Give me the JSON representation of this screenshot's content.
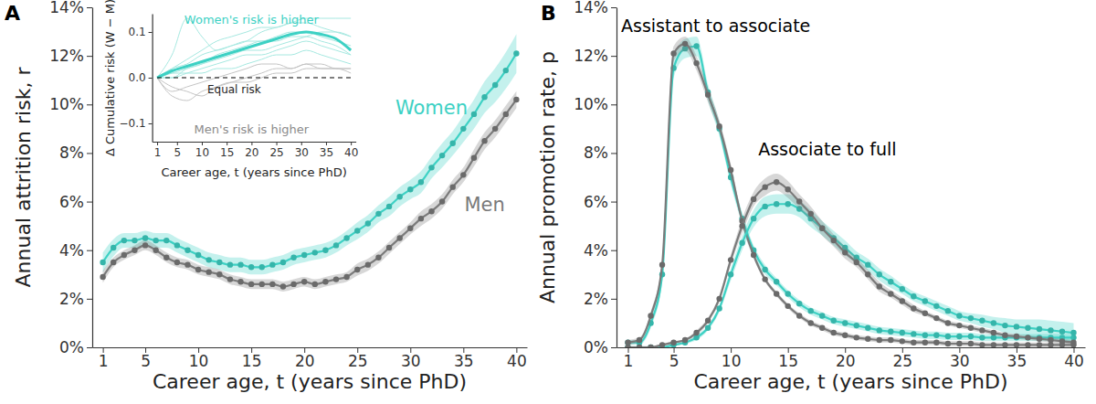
{
  "chart_data": [
    {
      "type": "line",
      "title": "A",
      "x_label": "Career age, t (years since PhD)",
      "y_label": "Annual attrition risk, r",
      "x": [
        1,
        2,
        3,
        4,
        5,
        6,
        7,
        8,
        9,
        10,
        11,
        12,
        13,
        14,
        15,
        16,
        17,
        18,
        19,
        20,
        21,
        22,
        23,
        24,
        25,
        26,
        27,
        28,
        29,
        30,
        31,
        32,
        33,
        34,
        35,
        36,
        37,
        38,
        39,
        40
      ],
      "xlim": [
        0,
        41
      ],
      "xticks": [
        1,
        5,
        10,
        15,
        20,
        25,
        30,
        35,
        40
      ],
      "ylim": [
        0,
        14
      ],
      "yticks": [
        {
          "value": 0,
          "label": "0%"
        },
        {
          "value": 2,
          "label": "2%"
        },
        {
          "value": 4,
          "label": "4%"
        },
        {
          "value": 6,
          "label": "6%"
        },
        {
          "value": 8,
          "label": "8%"
        },
        {
          "value": 10,
          "label": "10%"
        },
        {
          "value": 12,
          "label": "12%"
        },
        {
          "value": 14,
          "label": "14%"
        }
      ],
      "marker": "circle",
      "series": [
        {
          "name": "Women",
          "color": "#3dd1c4",
          "values": [
            3.5,
            4.1,
            4.4,
            4.4,
            4.5,
            4.4,
            4.4,
            4.2,
            4.0,
            3.8,
            3.6,
            3.5,
            3.4,
            3.4,
            3.3,
            3.3,
            3.4,
            3.5,
            3.7,
            3.8,
            3.9,
            4.0,
            4.2,
            4.5,
            4.8,
            5.1,
            5.5,
            5.8,
            6.2,
            6.5,
            6.8,
            7.4,
            7.9,
            8.4,
            9.0,
            9.6,
            10.3,
            10.8,
            11.4,
            12.1
          ],
          "ci": [
            0.4,
            0.35,
            0.3,
            0.3,
            0.3,
            0.3,
            0.3,
            0.3,
            0.3,
            0.3,
            0.3,
            0.3,
            0.3,
            0.3,
            0.3,
            0.3,
            0.3,
            0.3,
            0.3,
            0.3,
            0.3,
            0.3,
            0.3,
            0.3,
            0.35,
            0.35,
            0.35,
            0.4,
            0.4,
            0.4,
            0.45,
            0.45,
            0.5,
            0.5,
            0.55,
            0.6,
            0.65,
            0.7,
            0.75,
            0.8
          ]
        },
        {
          "name": "Men",
          "color": "#7a7a7a",
          "values": [
            2.9,
            3.5,
            3.8,
            4.0,
            4.2,
            4.0,
            3.7,
            3.5,
            3.4,
            3.2,
            3.1,
            3.0,
            2.8,
            2.7,
            2.6,
            2.6,
            2.6,
            2.5,
            2.6,
            2.7,
            2.6,
            2.7,
            2.8,
            2.9,
            3.2,
            3.4,
            3.7,
            4.1,
            4.5,
            4.9,
            5.3,
            5.6,
            6.0,
            6.6,
            7.1,
            7.8,
            8.5,
            9.0,
            9.6,
            10.2
          ],
          "ci": [
            0.25,
            0.2,
            0.2,
            0.2,
            0.2,
            0.2,
            0.2,
            0.2,
            0.2,
            0.2,
            0.2,
            0.2,
            0.2,
            0.2,
            0.2,
            0.2,
            0.2,
            0.2,
            0.2,
            0.2,
            0.2,
            0.2,
            0.2,
            0.2,
            0.25,
            0.25,
            0.25,
            0.25,
            0.25,
            0.25,
            0.3,
            0.3,
            0.3,
            0.3,
            0.3,
            0.35,
            0.35,
            0.35,
            0.35,
            0.35
          ]
        }
      ]
    },
    {
      "type": "line",
      "x_label": "Career age, t (years since PhD)",
      "y_label": "Δ Cumulative risk (W − M)",
      "annotations": [
        "Women's risk is higher",
        "Men's risk is higher"
      ],
      "x": [
        1,
        4,
        7,
        10,
        13,
        16,
        19,
        22,
        25,
        28,
        31,
        34,
        37,
        40
      ],
      "xlim": [
        0,
        41
      ],
      "xticks": [
        1,
        5,
        10,
        15,
        20,
        25,
        30,
        35,
        40
      ],
      "ylim": [
        -0.14,
        0.14
      ],
      "yticks": [
        {
          "value": -0.1,
          "label": "−0.1"
        },
        {
          "value": 0,
          "label": "0.0"
        },
        {
          "value": 0.1,
          "label": "0.1"
        }
      ],
      "series": [
        {
          "color": "#a6e8e0",
          "line_style": "thin",
          "values": [
            0,
            0.05,
            0.13,
            0.09,
            0.06,
            0.07,
            0.08,
            0.1,
            0.11,
            0.12,
            0.13,
            0.13,
            0.13,
            0.13
          ]
        },
        {
          "color": "#a6e8e0",
          "line_style": "thin",
          "values": [
            0,
            0.02,
            0.04,
            0.06,
            0.08,
            0.09,
            0.1,
            0.11,
            0.11,
            0.12,
            0.12,
            0.11,
            0.1,
            0.09
          ]
        },
        {
          "color": "#a6e8e0",
          "line_style": "thin",
          "values": [
            0,
            0.01,
            0.02,
            0.03,
            0.05,
            0.06,
            0.07,
            0.08,
            0.08,
            0.09,
            0.09,
            0.08,
            0.07,
            0.05
          ]
        },
        {
          "color": "#a6e8e0",
          "line_style": "thin",
          "values": [
            0,
            0,
            0.01,
            0.02,
            0.03,
            0.04,
            0.05,
            0.05,
            0.06,
            0.07,
            0.08,
            0.07,
            0.06,
            0.05
          ]
        },
        {
          "color": "#a6e8e0",
          "line_style": "thin",
          "values": [
            0,
            0.01,
            0.01,
            0.01,
            0.02,
            0.02,
            0.03,
            0.04,
            0.05,
            0.05,
            0.06,
            0.05,
            0.04,
            0.03
          ]
        },
        {
          "color": "#a6e8e0",
          "line_style": "thin",
          "values": [
            0,
            0.02,
            0.03,
            0.05,
            0.06,
            0.07,
            0.08,
            0.08,
            0.09,
            0.1,
            0.1,
            0.09,
            0.08,
            0.07
          ]
        },
        {
          "color": "#a6e8e0",
          "line_style": "thin",
          "values": [
            0,
            0,
            0.02,
            0.03,
            0.04,
            0.05,
            0.06,
            0.06,
            0.07,
            0.08,
            0.09,
            0.1,
            0.1,
            0.09
          ]
        },
        {
          "color": "#c4c4c4",
          "line_style": "thin",
          "values": [
            0,
            -0.03,
            -0.02,
            -0.01,
            0,
            0.01,
            0.02,
            0.03,
            0.03,
            0.02,
            0.03,
            0.02,
            0.02,
            0.01
          ]
        },
        {
          "color": "#c4c4c4",
          "line_style": "thin",
          "values": [
            0,
            -0.04,
            -0.05,
            -0.03,
            -0.02,
            -0.01,
            0,
            0.01,
            0.02,
            0.02,
            0.03,
            0.03,
            0.02,
            0.02
          ]
        },
        {
          "color": "#c4c4c4",
          "line_style": "thin",
          "values": [
            0,
            -0.02,
            -0.03,
            -0.04,
            -0.02,
            -0.01,
            -0.01,
            0,
            0.01,
            0.01,
            0.02,
            0.02,
            0.02,
            0.02
          ]
        },
        {
          "color": "#3dd1c4",
          "line_style": "solid",
          "values": [
            0,
            0.015,
            0.025,
            0.035,
            0.045,
            0.055,
            0.065,
            0.075,
            0.085,
            0.095,
            0.1,
            0.095,
            0.085,
            0.06
          ]
        },
        {
          "name": "Equal risk",
          "color": "#000000",
          "line_style": "dashed",
          "values": [
            0,
            0,
            0,
            0,
            0,
            0,
            0,
            0,
            0,
            0,
            0,
            0,
            0,
            0
          ]
        }
      ]
    },
    {
      "type": "line",
      "title": "B",
      "x_label": "Career age, t (years since PhD)",
      "y_label": "Annual promotion rate, p",
      "annotations": [
        "Assistant to associate",
        "Associate to full"
      ],
      "x": [
        1,
        2,
        3,
        4,
        5,
        6,
        7,
        8,
        9,
        10,
        11,
        12,
        13,
        14,
        15,
        16,
        17,
        18,
        19,
        20,
        21,
        22,
        23,
        24,
        25,
        26,
        27,
        28,
        29,
        30,
        31,
        32,
        33,
        34,
        35,
        36,
        37,
        38,
        39,
        40
      ],
      "xlim": [
        0,
        41
      ],
      "xticks": [
        1,
        5,
        10,
        15,
        20,
        25,
        30,
        35,
        40
      ],
      "ylim": [
        0,
        14
      ],
      "yticks": [
        {
          "value": 0,
          "label": "0%"
        },
        {
          "value": 2,
          "label": "2%"
        },
        {
          "value": 4,
          "label": "4%"
        },
        {
          "value": 6,
          "label": "6%"
        },
        {
          "value": 8,
          "label": "8%"
        },
        {
          "value": 10,
          "label": "10%"
        },
        {
          "value": 12,
          "label": "12%"
        },
        {
          "value": 14,
          "label": "14%"
        }
      ],
      "marker": "circle",
      "series": [
        {
          "color": "#3dd1c4",
          "values": [
            0.2,
            0.2,
            1.0,
            3.0,
            11.5,
            12.3,
            12.4,
            10.5,
            9.0,
            7.0,
            5.3,
            4.0,
            3.2,
            2.7,
            2.2,
            1.8,
            1.5,
            1.3,
            1.1,
            1.0,
            0.9,
            0.8,
            0.7,
            0.65,
            0.6,
            0.55,
            0.5,
            0.5,
            0.45,
            0.45,
            0.45,
            0.4,
            0.4,
            0.4,
            0.4,
            0.4,
            0.4,
            0.4,
            0.4,
            0.4
          ],
          "ci": [
            0.1,
            0.1,
            0.2,
            0.3,
            0.4,
            0.4,
            0.4,
            0.35,
            0.3,
            0.3,
            0.25,
            0.2,
            0.2,
            0.15,
            0.15,
            0.15,
            0.15,
            0.15,
            0.15,
            0.15,
            0.15,
            0.15,
            0.15,
            0.15,
            0.15,
            0.15,
            0.15,
            0.15,
            0.15,
            0.15,
            0.15,
            0.15,
            0.15,
            0.15,
            0.15,
            0.15,
            0.15,
            0.15,
            0.15,
            0.15
          ]
        },
        {
          "color": "#7a7a7a",
          "values": [
            0.2,
            0.3,
            1.3,
            3.4,
            12.1,
            12.5,
            11.7,
            10.4,
            9.1,
            7.3,
            5.2,
            3.8,
            2.8,
            2.2,
            1.7,
            1.3,
            1.0,
            0.8,
            0.6,
            0.5,
            0.4,
            0.35,
            0.3,
            0.3,
            0.25,
            0.2,
            0.2,
            0.2,
            0.15,
            0.15,
            0.15,
            0.1,
            0.1,
            0.1,
            0.1,
            0.1,
            0.1,
            0.1,
            0.1,
            0.1
          ],
          "ci": [
            0.1,
            0.1,
            0.15,
            0.2,
            0.3,
            0.3,
            0.3,
            0.3,
            0.25,
            0.25,
            0.2,
            0.15,
            0.1,
            0.1,
            0.1,
            0.1,
            0.1,
            0.1,
            0.1,
            0.1,
            0.1,
            0.1,
            0.1,
            0.1,
            0.1,
            0.1,
            0.1,
            0.1,
            0.1,
            0.1,
            0.1,
            0.1,
            0.1,
            0.1,
            0.1,
            0.1,
            0.1,
            0.1,
            0.1,
            0.1
          ]
        },
        {
          "color": "#3dd1c4",
          "values": [
            0,
            0,
            0,
            0,
            0.1,
            0.2,
            0.4,
            0.8,
            1.6,
            3.0,
            4.3,
            5.3,
            5.8,
            5.9,
            5.9,
            5.7,
            5.3,
            4.9,
            4.5,
            4.1,
            3.7,
            3.4,
            3.0,
            2.7,
            2.4,
            2.1,
            1.9,
            1.7,
            1.5,
            1.3,
            1.2,
            1.1,
            1.0,
            0.9,
            0.85,
            0.8,
            0.75,
            0.7,
            0.65,
            0.6
          ],
          "ci": [
            0.05,
            0.05,
            0.05,
            0.05,
            0.05,
            0.05,
            0.1,
            0.1,
            0.15,
            0.25,
            0.3,
            0.35,
            0.4,
            0.4,
            0.4,
            0.35,
            0.35,
            0.3,
            0.3,
            0.3,
            0.25,
            0.25,
            0.25,
            0.25,
            0.2,
            0.2,
            0.2,
            0.2,
            0.2,
            0.2,
            0.2,
            0.25,
            0.25,
            0.3,
            0.3,
            0.35,
            0.4,
            0.4,
            0.4,
            0.4
          ]
        },
        {
          "color": "#7a7a7a",
          "values": [
            0,
            0,
            0,
            0.1,
            0.2,
            0.3,
            0.6,
            1.1,
            2.0,
            3.6,
            5.0,
            6.1,
            6.6,
            6.8,
            6.5,
            6.0,
            5.5,
            4.9,
            4.4,
            3.9,
            3.5,
            3.0,
            2.5,
            2.2,
            1.9,
            1.6,
            1.4,
            1.2,
            1.0,
            0.9,
            0.8,
            0.7,
            0.6,
            0.5,
            0.45,
            0.4,
            0.35,
            0.3,
            0.25,
            0.2
          ],
          "ci": [
            0.05,
            0.05,
            0.05,
            0.05,
            0.05,
            0.05,
            0.1,
            0.1,
            0.15,
            0.2,
            0.3,
            0.3,
            0.35,
            0.35,
            0.35,
            0.3,
            0.3,
            0.3,
            0.25,
            0.25,
            0.2,
            0.2,
            0.2,
            0.15,
            0.15,
            0.15,
            0.1,
            0.1,
            0.1,
            0.1,
            0.1,
            0.1,
            0.1,
            0.1,
            0.1,
            0.1,
            0.1,
            0.1,
            0.1,
            0.1
          ]
        }
      ]
    }
  ]
}
